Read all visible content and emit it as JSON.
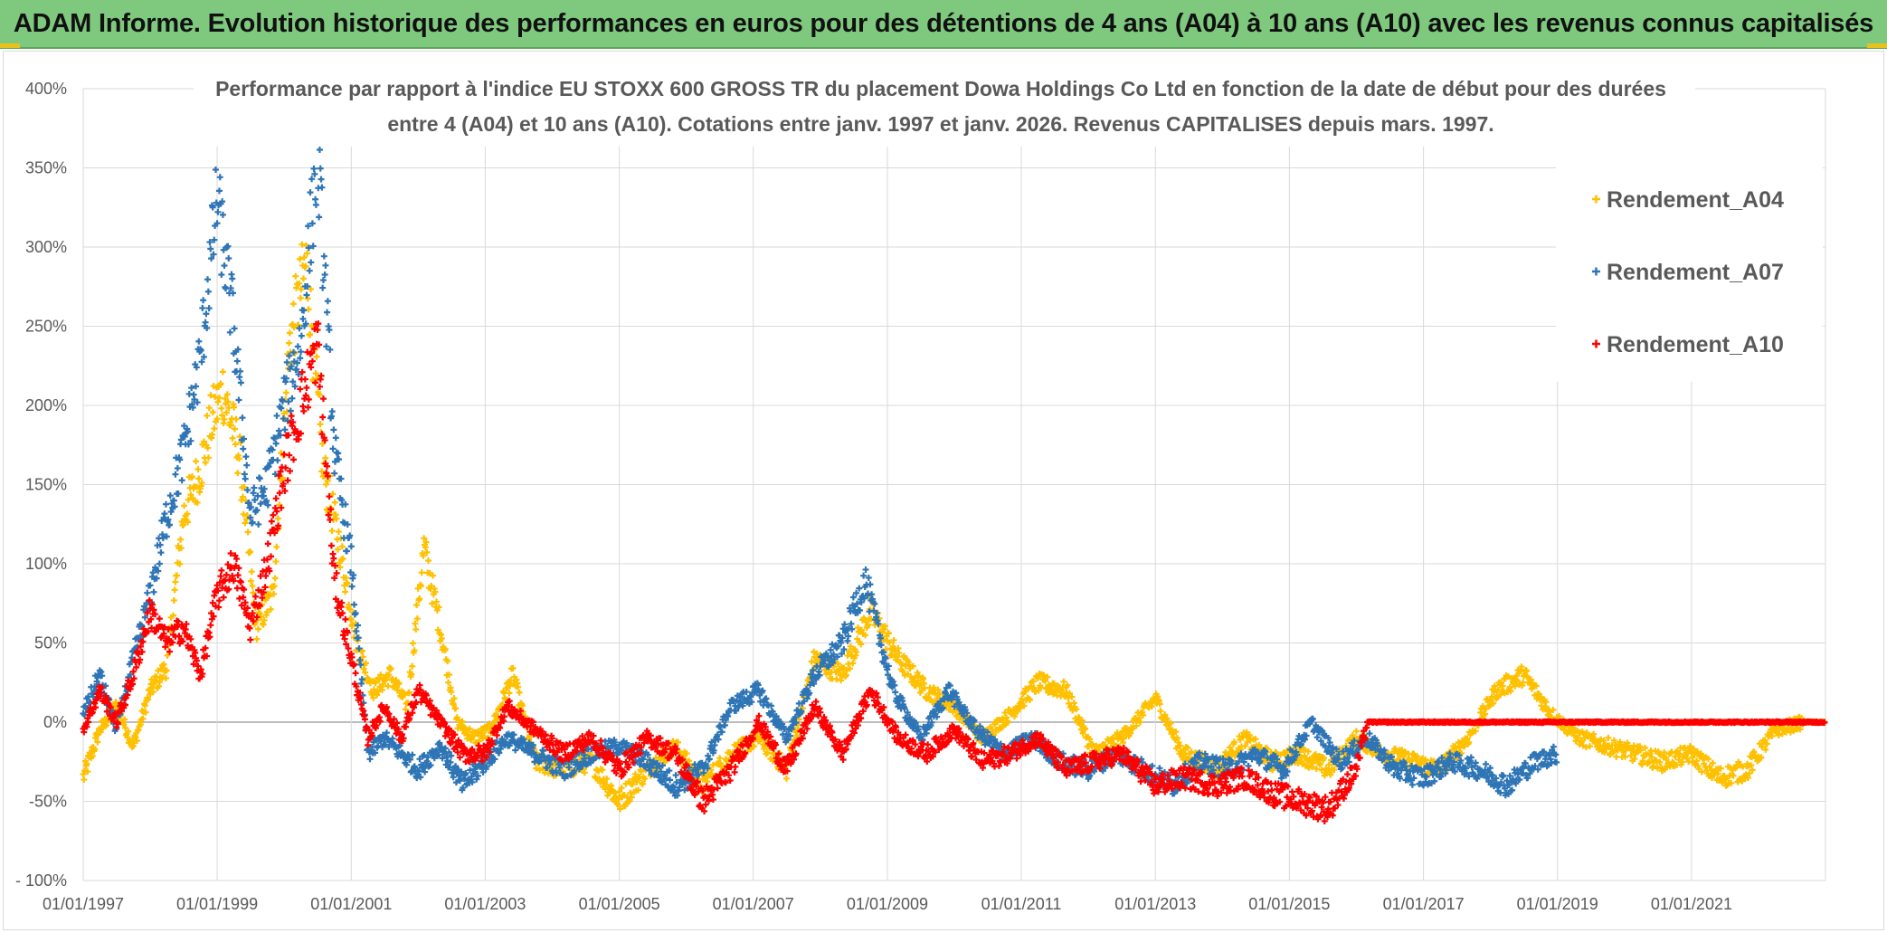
{
  "banner": {
    "title": "ADAM Informe. Evolution historique des performances en euros pour des détentions de 4 ans (A04) à 10 ans (A10) avec les revenus connus capitalisés"
  },
  "chart_data": {
    "type": "scatter",
    "title_line1": "Performance  par rapport à l'indice EU STOXX 600 GROSS TR  du placement Dowa Holdings Co Ltd en fonction de la date de début pour des durées",
    "title_line2": "entre 4 (A04) et 10 ans (A10). Cotations entre janv. 1997 et janv. 2026. Revenus CAPITALISES depuis mars. 1997.",
    "xlabel": "",
    "ylabel": "",
    "x_range": [
      "1997-01-01",
      "2023-01-01"
    ],
    "x_tick_labels": [
      "01/01/1997",
      "01/01/1999",
      "01/01/2001",
      "01/01/2003",
      "01/01/2005",
      "01/01/2007",
      "01/01/2009",
      "01/01/2011",
      "01/01/2013",
      "01/01/2015",
      "01/01/2017",
      "01/01/2019",
      "01/01/2021"
    ],
    "y_range": [
      -100,
      400
    ],
    "y_tick_labels": [
      "- 100%",
      "-50%",
      "0%",
      "50%",
      "100%",
      "150%",
      "200%",
      "250%",
      "300%",
      "350%",
      "400%"
    ],
    "grid": true,
    "legend_position": "top-right",
    "marker": "plus",
    "series": [
      {
        "name": "Rendement_A04",
        "color": "#ffc000",
        "points": [
          [
            "1997-01-01",
            -35
          ],
          [
            "1997-04-01",
            -5
          ],
          [
            "1997-07-01",
            10
          ],
          [
            "1997-10-01",
            -15
          ],
          [
            "1998-01-01",
            20
          ],
          [
            "1998-04-01",
            35
          ],
          [
            "1998-07-01",
            130
          ],
          [
            "1998-10-01",
            160
          ],
          [
            "1998-12-01",
            190
          ],
          [
            "1999-02-01",
            210
          ],
          [
            "1999-05-01",
            170
          ],
          [
            "1999-08-01",
            60
          ],
          [
            "1999-11-01",
            80
          ],
          [
            "2000-02-01",
            240
          ],
          [
            "2000-05-01",
            290
          ],
          [
            "2000-08-01",
            160
          ],
          [
            "2000-11-01",
            110
          ],
          [
            "2001-02-01",
            50
          ],
          [
            "2001-05-01",
            20
          ],
          [
            "2001-08-01",
            30
          ],
          [
            "2001-11-01",
            10
          ],
          [
            "2002-02-01",
            110
          ],
          [
            "2002-05-01",
            60
          ],
          [
            "2002-08-01",
            0
          ],
          [
            "2002-11-01",
            -10
          ],
          [
            "2003-02-01",
            -5
          ],
          [
            "2003-06-01",
            30
          ],
          [
            "2003-10-01",
            -25
          ],
          [
            "2004-03-01",
            -30
          ],
          [
            "2004-08-01",
            -25
          ],
          [
            "2005-01-01",
            -50
          ],
          [
            "2005-06-01",
            -30
          ],
          [
            "2005-11-01",
            -15
          ],
          [
            "2006-04-01",
            -40
          ],
          [
            "2006-09-01",
            -20
          ],
          [
            "2007-02-01",
            -10
          ],
          [
            "2007-07-01",
            -30
          ],
          [
            "2007-12-01",
            40
          ],
          [
            "2008-05-01",
            30
          ],
          [
            "2008-10-01",
            70
          ],
          [
            "2009-03-01",
            40
          ],
          [
            "2009-08-01",
            20
          ],
          [
            "2010-01-01",
            10
          ],
          [
            "2010-06-01",
            -10
          ],
          [
            "2010-11-01",
            5
          ],
          [
            "2011-04-01",
            25
          ],
          [
            "2011-09-01",
            20
          ],
          [
            "2012-02-01",
            -20
          ],
          [
            "2012-07-01",
            -10
          ],
          [
            "2013-01-01",
            15
          ],
          [
            "2013-06-01",
            -20
          ],
          [
            "2013-12-01",
            -30
          ],
          [
            "2014-05-01",
            -10
          ],
          [
            "2014-10-01",
            -25
          ],
          [
            "2015-03-01",
            -20
          ],
          [
            "2015-08-01",
            -30
          ],
          [
            "2016-01-01",
            -10
          ],
          [
            "2016-06-01",
            -20
          ],
          [
            "2016-11-01",
            -25
          ],
          [
            "2017-04-01",
            -30
          ],
          [
            "2017-09-01",
            -10
          ],
          [
            "2018-02-01",
            20
          ],
          [
            "2018-07-01",
            30
          ],
          [
            "2018-12-01",
            5
          ],
          [
            "2019-05-01",
            -10
          ],
          [
            "2019-10-01",
            -15
          ],
          [
            "2020-03-01",
            -20
          ],
          [
            "2020-08-01",
            -25
          ],
          [
            "2021-01-01",
            -20
          ],
          [
            "2021-06-01",
            -35
          ],
          [
            "2021-11-01",
            -30
          ],
          [
            "2022-04-01",
            -5
          ],
          [
            "2022-09-01",
            0
          ],
          [
            "2022-12-31",
            0
          ]
        ]
      },
      {
        "name": "Rendement_A07",
        "color": "#2e75b6",
        "points": [
          [
            "1997-01-01",
            5
          ],
          [
            "1997-04-01",
            30
          ],
          [
            "1997-07-01",
            -5
          ],
          [
            "1997-10-01",
            40
          ],
          [
            "1998-01-01",
            80
          ],
          [
            "1998-04-01",
            130
          ],
          [
            "1998-07-01",
            170
          ],
          [
            "1998-10-01",
            230
          ],
          [
            "1999-01-01",
            330
          ],
          [
            "1999-04-01",
            250
          ],
          [
            "1999-07-01",
            130
          ],
          [
            "1999-10-01",
            150
          ],
          [
            "2000-01-01",
            200
          ],
          [
            "2000-04-01",
            240
          ],
          [
            "2000-07-01",
            360
          ],
          [
            "2000-10-01",
            170
          ],
          [
            "2001-01-01",
            100
          ],
          [
            "2001-04-01",
            -20
          ],
          [
            "2001-07-01",
            -10
          ],
          [
            "2001-10-01",
            -20
          ],
          [
            "2002-01-01",
            -30
          ],
          [
            "2002-05-01",
            -15
          ],
          [
            "2002-09-01",
            -40
          ],
          [
            "2003-01-01",
            -25
          ],
          [
            "2003-05-01",
            -10
          ],
          [
            "2003-10-01",
            -20
          ],
          [
            "2004-03-01",
            -30
          ],
          [
            "2004-08-01",
            -20
          ],
          [
            "2005-01-01",
            -15
          ],
          [
            "2005-06-01",
            -25
          ],
          [
            "2005-11-01",
            -40
          ],
          [
            "2006-04-01",
            -30
          ],
          [
            "2006-09-01",
            10
          ],
          [
            "2007-02-01",
            20
          ],
          [
            "2007-07-01",
            -10
          ],
          [
            "2007-12-01",
            30
          ],
          [
            "2008-05-01",
            50
          ],
          [
            "2008-09-01",
            90
          ],
          [
            "2009-02-01",
            20
          ],
          [
            "2009-07-01",
            -10
          ],
          [
            "2009-12-01",
            20
          ],
          [
            "2010-05-01",
            -5
          ],
          [
            "2010-10-01",
            -20
          ],
          [
            "2011-03-01",
            -10
          ],
          [
            "2011-08-01",
            -25
          ],
          [
            "2012-01-01",
            -30
          ],
          [
            "2012-06-01",
            -20
          ],
          [
            "2012-11-01",
            -30
          ],
          [
            "2013-04-01",
            -40
          ],
          [
            "2013-09-01",
            -25
          ],
          [
            "2014-02-01",
            -30
          ],
          [
            "2014-07-01",
            -20
          ],
          [
            "2014-12-01",
            -30
          ],
          [
            "2015-05-01",
            0
          ],
          [
            "2015-10-01",
            -25
          ],
          [
            "2016-03-01",
            -10
          ],
          [
            "2016-08-01",
            -30
          ],
          [
            "2017-01-01",
            -35
          ],
          [
            "2017-06-01",
            -25
          ],
          [
            "2017-11-01",
            -30
          ],
          [
            "2018-04-01",
            -40
          ],
          [
            "2018-09-01",
            -25
          ],
          [
            "2018-12-31",
            -20
          ]
        ]
      },
      {
        "name": "Rendement_A10",
        "color": "#ff0000",
        "points": [
          [
            "1997-01-01",
            -5
          ],
          [
            "1997-04-01",
            20
          ],
          [
            "1997-07-01",
            0
          ],
          [
            "1997-10-01",
            30
          ],
          [
            "1998-01-01",
            70
          ],
          [
            "1998-04-01",
            50
          ],
          [
            "1998-07-01",
            60
          ],
          [
            "1998-10-01",
            30
          ],
          [
            "1999-01-01",
            80
          ],
          [
            "1999-04-01",
            100
          ],
          [
            "1999-07-01",
            60
          ],
          [
            "1999-10-01",
            100
          ],
          [
            "2000-01-01",
            160
          ],
          [
            "2000-04-01",
            200
          ],
          [
            "2000-07-01",
            240
          ],
          [
            "2000-10-01",
            90
          ],
          [
            "2001-01-01",
            40
          ],
          [
            "2001-04-01",
            -10
          ],
          [
            "2001-07-01",
            10
          ],
          [
            "2001-10-01",
            -10
          ],
          [
            "2002-01-01",
            20
          ],
          [
            "2002-05-01",
            0
          ],
          [
            "2002-09-01",
            -20
          ],
          [
            "2003-01-01",
            -20
          ],
          [
            "2003-05-01",
            10
          ],
          [
            "2003-10-01",
            -5
          ],
          [
            "2004-03-01",
            -20
          ],
          [
            "2004-08-01",
            -10
          ],
          [
            "2005-01-01",
            -30
          ],
          [
            "2005-06-01",
            -10
          ],
          [
            "2005-11-01",
            -20
          ],
          [
            "2006-04-01",
            -50
          ],
          [
            "2006-09-01",
            -30
          ],
          [
            "2007-02-01",
            0
          ],
          [
            "2007-07-01",
            -30
          ],
          [
            "2007-12-01",
            10
          ],
          [
            "2008-05-01",
            -20
          ],
          [
            "2008-10-01",
            20
          ],
          [
            "2009-03-01",
            -10
          ],
          [
            "2009-08-01",
            -20
          ],
          [
            "2010-01-01",
            -5
          ],
          [
            "2010-06-01",
            -25
          ],
          [
            "2010-11-01",
            -20
          ],
          [
            "2011-04-01",
            -10
          ],
          [
            "2011-09-01",
            -30
          ],
          [
            "2012-02-01",
            -25
          ],
          [
            "2012-07-01",
            -20
          ],
          [
            "2013-01-01",
            -40
          ],
          [
            "2013-06-01",
            -35
          ],
          [
            "2013-12-01",
            -40
          ],
          [
            "2014-05-01",
            -35
          ],
          [
            "2014-10-01",
            -45
          ],
          [
            "2015-03-01",
            -50
          ],
          [
            "2015-08-01",
            -55
          ],
          [
            "2016-01-01",
            -30
          ],
          [
            "2016-03-01",
            0
          ],
          [
            "2017-01-01",
            0
          ],
          [
            "2018-01-01",
            0
          ],
          [
            "2019-01-01",
            0
          ],
          [
            "2020-01-01",
            0
          ],
          [
            "2021-01-01",
            0
          ],
          [
            "2022-01-01",
            0
          ],
          [
            "2022-12-31",
            0
          ]
        ]
      }
    ]
  }
}
